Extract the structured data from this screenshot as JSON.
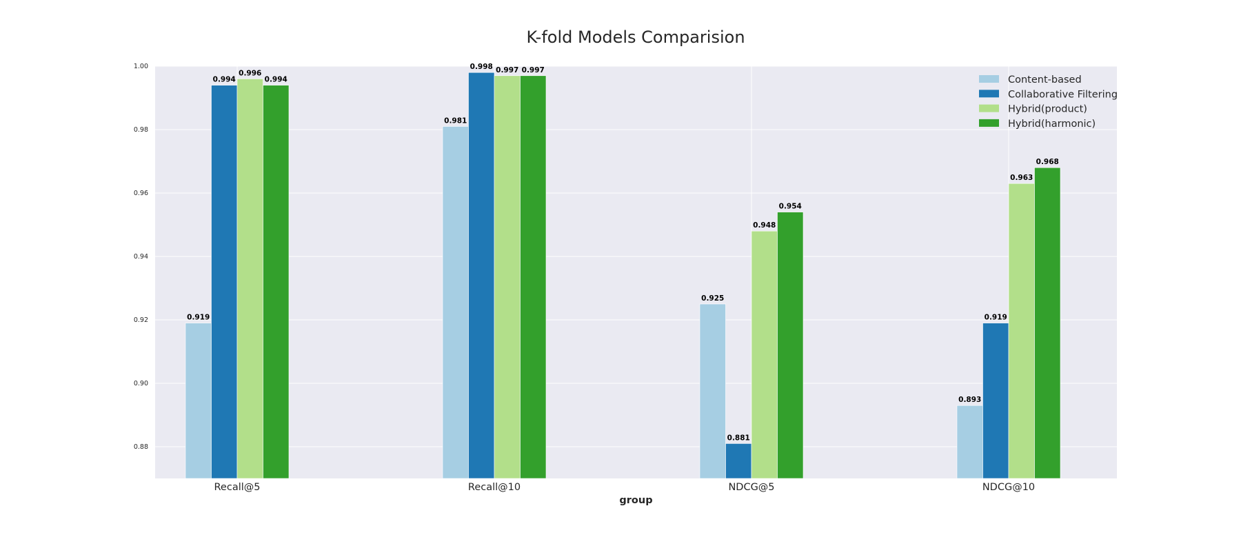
{
  "chart_data": {
    "type": "bar",
    "title": "K-fold Models Comparision",
    "xlabel": "group",
    "ylabel": "",
    "categories": [
      "Recall@5",
      "Recall@10",
      "NDCG@5",
      "NDCG@10"
    ],
    "ylim": [
      0.87,
      1.0
    ],
    "yticks": [
      0.88,
      0.9,
      0.92,
      0.94,
      0.96,
      0.98,
      1.0
    ],
    "ytick_labels": [
      "0.88",
      "0.90",
      "0.92",
      "0.94",
      "0.96",
      "0.98",
      "1.00"
    ],
    "grid": true,
    "legend_position": "top-right",
    "background": "#eaeaf2",
    "series": [
      {
        "name": "Content-based",
        "color": "#a6cee3",
        "values": [
          0.919,
          0.981,
          0.925,
          0.893
        ],
        "labels": [
          "0.919",
          "0.981",
          "0.925",
          "0.893"
        ]
      },
      {
        "name": "Collaborative Filtering",
        "color": "#1f78b4",
        "values": [
          0.994,
          0.998,
          0.881,
          0.919
        ],
        "labels": [
          "0.994",
          "0.998",
          "0.881",
          "0.919"
        ]
      },
      {
        "name": "Hybrid(product)",
        "color": "#b2df8a",
        "values": [
          0.996,
          0.997,
          0.948,
          0.963
        ],
        "labels": [
          "0.996",
          "0.997",
          "0.948",
          "0.963"
        ]
      },
      {
        "name": "Hybrid(harmonic)",
        "color": "#33a02c",
        "values": [
          0.994,
          0.997,
          0.954,
          0.968
        ],
        "labels": [
          "0.994",
          "0.997",
          "0.954",
          "0.968"
        ]
      }
    ]
  }
}
